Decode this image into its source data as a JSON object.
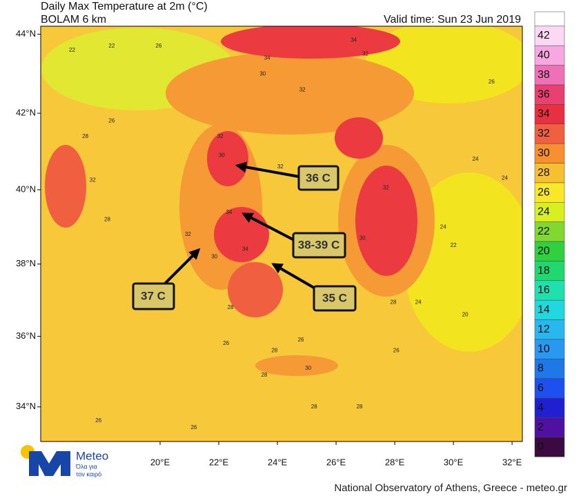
{
  "header": {
    "title": "Daily Max Temperature at 2m (°C)",
    "model": "BOLAM 6 km",
    "valid_time": "Valid time: Sun 23 Jun 2019"
  },
  "map": {
    "type": "contour-map",
    "lonlim": [
      15.93,
      32.35
    ],
    "latlim": [
      33.0,
      44.2
    ],
    "lon_ticks": [
      {
        "value": 20,
        "label": "20°E"
      },
      {
        "value": 22,
        "label": "22°E"
      },
      {
        "value": 24,
        "label": "24°E"
      },
      {
        "value": 26,
        "label": "26°E"
      },
      {
        "value": 28,
        "label": "28°E"
      },
      {
        "value": 30,
        "label": "30°E"
      },
      {
        "value": 32,
        "label": "32°E"
      }
    ],
    "lat_ticks": [
      {
        "value": 34,
        "label": "34°N"
      },
      {
        "value": 36,
        "label": "36°N"
      },
      {
        "value": 38,
        "label": "38°N"
      },
      {
        "value": 40,
        "label": "40°N"
      },
      {
        "value": 42,
        "label": "42°N"
      },
      {
        "value": 44,
        "label": "44°N"
      }
    ],
    "contour_labels": [
      {
        "value": 26,
        "lon": 19.95,
        "lat": 43.7
      },
      {
        "value": 22,
        "lon": 18.35,
        "lat": 43.7
      },
      {
        "value": 22,
        "lon": 17.0,
        "lat": 43.6
      },
      {
        "value": 34,
        "lon": 23.65,
        "lat": 43.4
      },
      {
        "value": 32,
        "lon": 27.0,
        "lat": 43.5
      },
      {
        "value": 34,
        "lon": 26.6,
        "lat": 43.85
      },
      {
        "value": 26,
        "lon": 31.3,
        "lat": 42.8
      },
      {
        "value": 30,
        "lon": 23.5,
        "lat": 43.0
      },
      {
        "value": 32,
        "lon": 24.85,
        "lat": 42.6
      },
      {
        "value": 32,
        "lon": 22.05,
        "lat": 41.4
      },
      {
        "value": 30,
        "lon": 22.1,
        "lat": 40.9
      },
      {
        "value": 32,
        "lon": 24.1,
        "lat": 40.6
      },
      {
        "value": 32,
        "lon": 27.7,
        "lat": 40.05
      },
      {
        "value": 24,
        "lon": 29.65,
        "lat": 39.0
      },
      {
        "value": 22,
        "lon": 30.0,
        "lat": 38.5
      },
      {
        "value": 24,
        "lon": 30.75,
        "lat": 40.8
      },
      {
        "value": 34,
        "lon": 22.35,
        "lat": 39.4
      },
      {
        "value": 34,
        "lon": 22.9,
        "lat": 38.4
      },
      {
        "value": 30,
        "lon": 21.85,
        "lat": 38.2
      },
      {
        "value": 32,
        "lon": 20.95,
        "lat": 38.8
      },
      {
        "value": 28,
        "lon": 18.2,
        "lat": 39.2
      },
      {
        "value": 32,
        "lon": 17.7,
        "lat": 40.25
      },
      {
        "value": 28,
        "lon": 17.45,
        "lat": 41.4
      },
      {
        "value": 26,
        "lon": 18.35,
        "lat": 41.8
      },
      {
        "value": 28,
        "lon": 22.4,
        "lat": 36.8
      },
      {
        "value": 26,
        "lon": 22.25,
        "lat": 35.8
      },
      {
        "value": 28,
        "lon": 23.9,
        "lat": 35.6
      },
      {
        "value": 30,
        "lon": 25.05,
        "lat": 35.1
      },
      {
        "value": 28,
        "lon": 23.55,
        "lat": 34.9
      },
      {
        "value": 28,
        "lon": 25.25,
        "lat": 34.0
      },
      {
        "value": 28,
        "lon": 26.8,
        "lat": 34.0
      },
      {
        "value": 26,
        "lon": 17.9,
        "lat": 33.6
      },
      {
        "value": 26,
        "lon": 21.15,
        "lat": 33.4
      },
      {
        "value": 26,
        "lon": 24.8,
        "lat": 35.9
      },
      {
        "value": 26,
        "lon": 28.05,
        "lat": 35.6
      },
      {
        "value": 28,
        "lon": 27.95,
        "lat": 36.95
      },
      {
        "value": 24,
        "lon": 28.8,
        "lat": 36.95
      },
      {
        "value": 20,
        "lon": 30.4,
        "lat": 36.6
      },
      {
        "value": 24,
        "lon": 31.75,
        "lat": 40.3
      },
      {
        "value": 30,
        "lon": 26.9,
        "lat": 38.7
      }
    ],
    "colorbar": {
      "levels": [
        0,
        2,
        4,
        6,
        8,
        10,
        12,
        14,
        16,
        18,
        20,
        22,
        24,
        26,
        28,
        30,
        32,
        34,
        36,
        38,
        40,
        42
      ],
      "colors": [
        "#3a0a40",
        "#5010a0",
        "#2020d0",
        "#1e50f0",
        "#1e78e8",
        "#2898f0",
        "#28b8f0",
        "#20d8e0",
        "#20e0b0",
        "#20d870",
        "#30d040",
        "#80d830",
        "#d8f020",
        "#f8e828",
        "#f8c030",
        "#f89030",
        "#f06040",
        "#e83040",
        "#e84070",
        "#f070b8",
        "#f8a8e0",
        "#fcd8f4",
        "#ffffff"
      ]
    }
  },
  "callouts": [
    "36 C",
    "38-39 C",
    "37 C",
    "35 C"
  ],
  "logo": {
    "name": "Meteo",
    "tagline_1": "Όλα για",
    "tagline_2": "τον καιρό"
  },
  "footer": "National Observatory of Athens, Greece - meteo.gr"
}
